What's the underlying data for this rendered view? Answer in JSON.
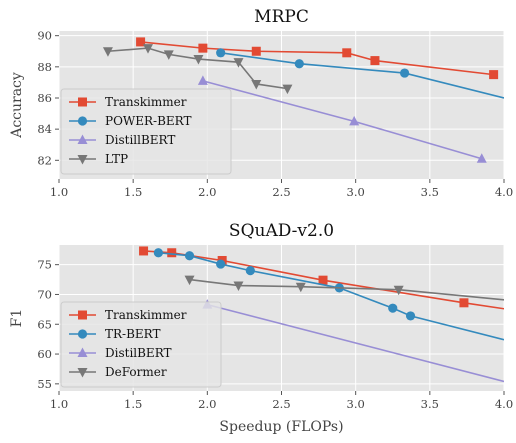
{
  "chart_data": [
    {
      "type": "line",
      "title": "MRPC",
      "xlabel": "",
      "ylabel": "Accuracy",
      "xlim": [
        1.0,
        4.0
      ],
      "ylim": [
        80.8,
        90.3
      ],
      "xticks": [
        "1.0",
        "1.5",
        "2.0",
        "2.5",
        "3.0",
        "3.5",
        "4.0"
      ],
      "yticks": [
        "82",
        "84",
        "86",
        "88",
        "90"
      ],
      "grid": true,
      "legend_position": "bottom-left",
      "series": [
        {
          "name": "Transkimmer",
          "color": "#E24A33",
          "marker": "square",
          "x": [
            1.55,
            1.97,
            2.33,
            2.94,
            3.13,
            3.93
          ],
          "y": [
            89.6,
            89.2,
            89.0,
            88.9,
            88.4,
            87.5
          ]
        },
        {
          "name": "POWER-BERT",
          "color": "#348ABD",
          "marker": "circle",
          "x": [
            2.09,
            2.62,
            3.33,
            4.0
          ],
          "y": [
            88.9,
            88.2,
            87.6,
            86.0
          ],
          "marker_points": 3
        },
        {
          "name": "DistillBERT",
          "color": "#988ED5",
          "marker": "triangle-up",
          "x": [
            1.97,
            2.99,
            3.85
          ],
          "y": [
            87.1,
            84.5,
            82.1
          ]
        },
        {
          "name": "LTP",
          "color": "#777777",
          "marker": "triangle-down",
          "x": [
            1.33,
            1.6,
            1.74,
            1.94,
            2.21,
            2.33,
            2.54
          ],
          "y": [
            89.0,
            89.2,
            88.8,
            88.5,
            88.3,
            86.9,
            86.6
          ]
        }
      ]
    },
    {
      "type": "line",
      "title": "SQuAD-v2.0",
      "xlabel": "Speedup (FLOPs)",
      "ylabel": "F1",
      "xlim": [
        1.0,
        4.0
      ],
      "ylim": [
        53.8,
        78.3
      ],
      "xticks": [
        "1.0",
        "1.5",
        "2.0",
        "2.5",
        "3.0",
        "3.5",
        "4.0"
      ],
      "yticks": [
        "55",
        "60",
        "65",
        "70",
        "75"
      ],
      "grid": true,
      "legend_position": "bottom-left",
      "series": [
        {
          "name": "Transkimmer",
          "color": "#E24A33",
          "marker": "square",
          "x": [
            1.57,
            1.76,
            2.1,
            2.78,
            3.73,
            4.0
          ],
          "y": [
            77.3,
            77.0,
            75.7,
            72.4,
            68.6,
            67.6
          ],
          "marker_points": 5
        },
        {
          "name": "TR-BERT",
          "color": "#348ABD",
          "marker": "circle",
          "x": [
            1.67,
            1.88,
            2.09,
            2.29,
            2.89,
            3.25,
            3.37,
            4.0
          ],
          "y": [
            77.0,
            76.5,
            75.1,
            74.0,
            71.1,
            67.7,
            66.4,
            62.4
          ],
          "marker_points": 7
        },
        {
          "name": "DistilBERT",
          "color": "#988ED5",
          "marker": "triangle-up",
          "x": [
            2.0,
            4.0
          ],
          "y": [
            68.3,
            55.4
          ],
          "marker_points": 1
        },
        {
          "name": "DeFormer",
          "color": "#777777",
          "marker": "triangle-down",
          "x": [
            1.88,
            2.21,
            2.63,
            3.29,
            4.0
          ],
          "y": [
            72.5,
            71.5,
            71.3,
            70.8,
            69.1
          ],
          "marker_points": 4
        }
      ]
    }
  ]
}
